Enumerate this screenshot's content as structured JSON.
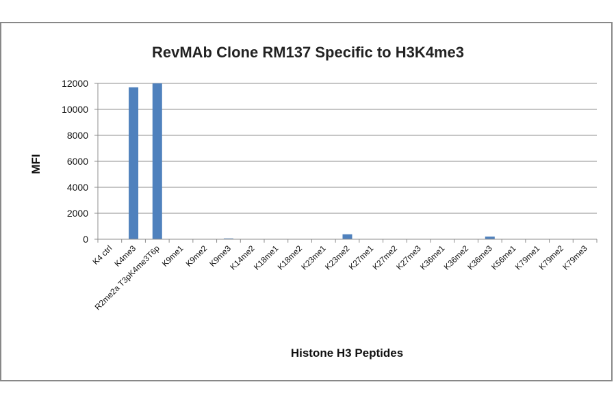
{
  "chart_data": {
    "type": "bar",
    "title": "RevMAb Clone RM137 Specific to H3K4me3",
    "xlabel": "Histone H3 Peptides",
    "ylabel": "MFI",
    "ylim": [
      0,
      12000
    ],
    "yticks": [
      0,
      2000,
      4000,
      6000,
      8000,
      10000,
      12000
    ],
    "grid": true,
    "legend": "none",
    "bar_color": "#4F81BD",
    "categories": [
      "K4 ctrl",
      "K4me3",
      "R2me2a T3pK4me3T6p",
      "K9me1",
      "K9me2",
      "K9me3",
      "K14me2",
      "K18me1",
      "K18me2",
      "K23me1",
      "K23me2",
      "K27me1",
      "K27me2",
      "K27me3",
      "K36me1",
      "K36me2",
      "K36me3",
      "K56me1",
      "K79me1",
      "K79me2",
      "K79me3"
    ],
    "values": [
      0,
      11700,
      12000,
      0,
      0,
      60,
      0,
      0,
      0,
      0,
      380,
      0,
      0,
      0,
      0,
      0,
      200,
      0,
      0,
      0,
      0
    ]
  }
}
